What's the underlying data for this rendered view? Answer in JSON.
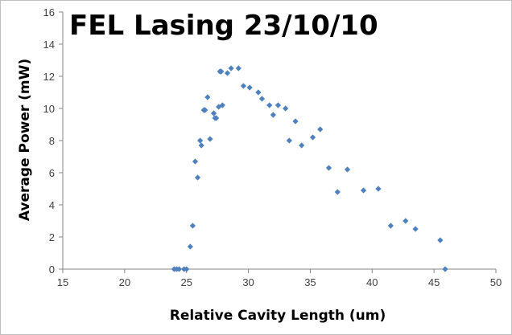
{
  "chart_data": {
    "type": "scatter",
    "title": "FEL Lasing 23/10/10",
    "xlabel": "Relative Cavity Length (um)",
    "ylabel": "Average Power (mW)",
    "xlim": [
      15,
      50
    ],
    "ylim": [
      0,
      16
    ],
    "x_ticks": [
      15,
      20,
      25,
      30,
      35,
      40,
      45,
      50
    ],
    "y_ticks": [
      0,
      2,
      4,
      6,
      8,
      10,
      12,
      14,
      16
    ],
    "grid": false,
    "legend": "none",
    "marker": "diamond",
    "marker_color": "#4f81bd",
    "points": [
      [
        24.0,
        0.0
      ],
      [
        24.2,
        0.0
      ],
      [
        24.4,
        0.0
      ],
      [
        24.8,
        0.0
      ],
      [
        25.0,
        0.0
      ],
      [
        25.3,
        1.4
      ],
      [
        25.5,
        2.7
      ],
      [
        25.7,
        6.7
      ],
      [
        25.9,
        5.7
      ],
      [
        26.1,
        8.0
      ],
      [
        26.2,
        7.7
      ],
      [
        26.4,
        9.9
      ],
      [
        26.5,
        9.9
      ],
      [
        26.7,
        10.7
      ],
      [
        26.9,
        8.1
      ],
      [
        27.2,
        9.7
      ],
      [
        27.3,
        9.4
      ],
      [
        27.4,
        9.4
      ],
      [
        27.6,
        10.1
      ],
      [
        27.7,
        12.3
      ],
      [
        27.8,
        12.3
      ],
      [
        27.9,
        10.2
      ],
      [
        28.3,
        12.2
      ],
      [
        28.6,
        12.5
      ],
      [
        29.2,
        12.5
      ],
      [
        29.6,
        11.4
      ],
      [
        30.1,
        11.3
      ],
      [
        30.8,
        11.0
      ],
      [
        31.1,
        10.6
      ],
      [
        31.7,
        10.2
      ],
      [
        32.0,
        9.6
      ],
      [
        32.4,
        10.2
      ],
      [
        33.0,
        10.0
      ],
      [
        33.3,
        8.0
      ],
      [
        33.8,
        9.2
      ],
      [
        34.3,
        7.7
      ],
      [
        35.2,
        8.2
      ],
      [
        35.8,
        8.7
      ],
      [
        36.5,
        6.3
      ],
      [
        37.2,
        4.8
      ],
      [
        38.0,
        6.2
      ],
      [
        39.3,
        4.9
      ],
      [
        40.5,
        5.0
      ],
      [
        41.5,
        2.7
      ],
      [
        42.7,
        3.0
      ],
      [
        43.5,
        2.5
      ],
      [
        45.5,
        1.8
      ],
      [
        45.9,
        0.0
      ]
    ]
  }
}
